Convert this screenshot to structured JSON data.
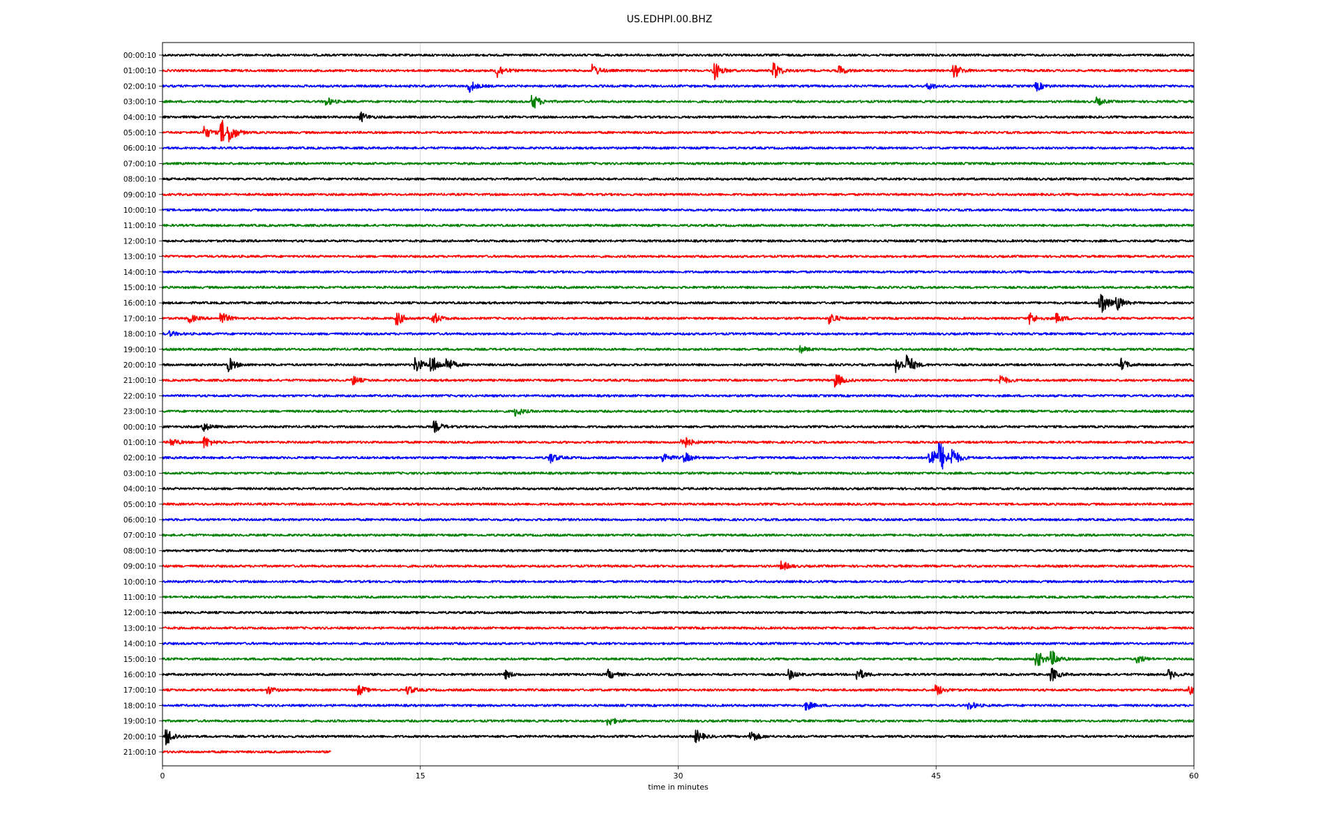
{
  "chart_data": {
    "type": "line",
    "title": "US.EDHPI.00.BHZ",
    "xlabel": "time in minutes",
    "ylabel": "",
    "xlim": [
      0,
      60
    ],
    "xticks": [
      0,
      15,
      30,
      45,
      60
    ],
    "grid": "vertical",
    "colors": [
      "#000000",
      "#ff0000",
      "#0000ff",
      "#008000"
    ],
    "row_labels": [
      "00:00:10",
      "01:00:10",
      "02:00:10",
      "03:00:10",
      "04:00:10",
      "05:00:10",
      "06:00:10",
      "07:00:10",
      "08:00:10",
      "09:00:10",
      "10:00:10",
      "11:00:10",
      "12:00:10",
      "13:00:10",
      "14:00:10",
      "15:00:10",
      "16:00:10",
      "17:00:10",
      "18:00:10",
      "19:00:10",
      "20:00:10",
      "21:00:10",
      "22:00:10",
      "23:00:10",
      "00:00:10",
      "01:00:10",
      "02:00:10",
      "03:00:10",
      "04:00:10",
      "05:00:10",
      "06:00:10",
      "07:00:10",
      "08:00:10",
      "09:00:10",
      "10:00:10",
      "11:00:10",
      "12:00:10",
      "13:00:10",
      "14:00:10",
      "15:00:10",
      "16:00:10",
      "17:00:10",
      "18:00:10",
      "19:00:10",
      "20:00:10",
      "21:00:10"
    ],
    "last_row_end_minutes": 9.8,
    "events": [
      {
        "row": 1,
        "t": 19.5,
        "amp": 1.0
      },
      {
        "row": 1,
        "t": 25.1,
        "amp": 0.8
      },
      {
        "row": 1,
        "t": 32.1,
        "amp": 1.4
      },
      {
        "row": 1,
        "t": 35.6,
        "amp": 1.2
      },
      {
        "row": 1,
        "t": 39.4,
        "amp": 0.6
      },
      {
        "row": 1,
        "t": 46.1,
        "amp": 1.0
      },
      {
        "row": 2,
        "t": 17.9,
        "amp": 0.8
      },
      {
        "row": 2,
        "t": 44.6,
        "amp": 0.5
      },
      {
        "row": 2,
        "t": 50.9,
        "amp": 0.6
      },
      {
        "row": 3,
        "t": 9.6,
        "amp": 0.5
      },
      {
        "row": 3,
        "t": 21.6,
        "amp": 1.0
      },
      {
        "row": 3,
        "t": 54.4,
        "amp": 0.5
      },
      {
        "row": 4,
        "t": 11.6,
        "amp": 0.6
      },
      {
        "row": 5,
        "t": 2.5,
        "amp": 0.8
      },
      {
        "row": 5,
        "t": 3.5,
        "amp": 1.6
      },
      {
        "row": 5,
        "t": 4.0,
        "amp": 0.9
      },
      {
        "row": 16,
        "t": 54.6,
        "amp": 1.8
      },
      {
        "row": 16,
        "t": 55.6,
        "amp": 0.8
      },
      {
        "row": 17,
        "t": 1.6,
        "amp": 0.6
      },
      {
        "row": 17,
        "t": 3.5,
        "amp": 0.8
      },
      {
        "row": 17,
        "t": 13.7,
        "amp": 0.9
      },
      {
        "row": 17,
        "t": 15.8,
        "amp": 0.8
      },
      {
        "row": 17,
        "t": 38.9,
        "amp": 0.7
      },
      {
        "row": 17,
        "t": 50.5,
        "amp": 0.8
      },
      {
        "row": 17,
        "t": 52.1,
        "amp": 0.6
      },
      {
        "row": 18,
        "t": 0.5,
        "amp": 0.3
      },
      {
        "row": 19,
        "t": 37.2,
        "amp": 0.4
      },
      {
        "row": 20,
        "t": 3.9,
        "amp": 0.9
      },
      {
        "row": 20,
        "t": 14.8,
        "amp": 1.0
      },
      {
        "row": 20,
        "t": 15.7,
        "amp": 1.2
      },
      {
        "row": 20,
        "t": 16.6,
        "amp": 0.9
      },
      {
        "row": 20,
        "t": 42.8,
        "amp": 1.0
      },
      {
        "row": 20,
        "t": 43.4,
        "amp": 1.2
      },
      {
        "row": 20,
        "t": 55.8,
        "amp": 0.8
      },
      {
        "row": 21,
        "t": 11.1,
        "amp": 0.6
      },
      {
        "row": 21,
        "t": 39.2,
        "amp": 1.0
      },
      {
        "row": 21,
        "t": 48.8,
        "amp": 0.7
      },
      {
        "row": 23,
        "t": 20.6,
        "amp": 0.6
      },
      {
        "row": 24,
        "t": 2.4,
        "amp": 0.6
      },
      {
        "row": 24,
        "t": 15.9,
        "amp": 0.7
      },
      {
        "row": 25,
        "t": 0.6,
        "amp": 0.5
      },
      {
        "row": 25,
        "t": 2.5,
        "amp": 0.8
      },
      {
        "row": 25,
        "t": 30.3,
        "amp": 1.1
      },
      {
        "row": 26,
        "t": 22.6,
        "amp": 0.7
      },
      {
        "row": 26,
        "t": 29.2,
        "amp": 0.6
      },
      {
        "row": 26,
        "t": 30.4,
        "amp": 0.7
      },
      {
        "row": 26,
        "t": 44.7,
        "amp": 1.6
      },
      {
        "row": 26,
        "t": 45.3,
        "amp": 1.8
      },
      {
        "row": 26,
        "t": 46.0,
        "amp": 1.1
      },
      {
        "row": 33,
        "t": 36.1,
        "amp": 0.6
      },
      {
        "row": 39,
        "t": 50.9,
        "amp": 1.2
      },
      {
        "row": 39,
        "t": 51.8,
        "amp": 0.9
      },
      {
        "row": 39,
        "t": 56.8,
        "amp": 0.5
      },
      {
        "row": 40,
        "t": 20.0,
        "amp": 0.5
      },
      {
        "row": 40,
        "t": 26.0,
        "amp": 0.6
      },
      {
        "row": 40,
        "t": 36.5,
        "amp": 0.6
      },
      {
        "row": 40,
        "t": 40.5,
        "amp": 0.8
      },
      {
        "row": 40,
        "t": 51.8,
        "amp": 0.8
      },
      {
        "row": 40,
        "t": 58.6,
        "amp": 0.6
      },
      {
        "row": 41,
        "t": 6.2,
        "amp": 0.5
      },
      {
        "row": 41,
        "t": 11.5,
        "amp": 0.6
      },
      {
        "row": 41,
        "t": 14.3,
        "amp": 0.6
      },
      {
        "row": 41,
        "t": 45.1,
        "amp": 0.7
      },
      {
        "row": 41,
        "t": 59.8,
        "amp": 0.5
      },
      {
        "row": 42,
        "t": 37.5,
        "amp": 0.6
      },
      {
        "row": 42,
        "t": 47.0,
        "amp": 0.5
      },
      {
        "row": 43,
        "t": 26.0,
        "amp": 0.6
      },
      {
        "row": 44,
        "t": 0.3,
        "amp": 1.2
      },
      {
        "row": 44,
        "t": 31.1,
        "amp": 0.8
      },
      {
        "row": 44,
        "t": 34.3,
        "amp": 0.8
      }
    ]
  }
}
